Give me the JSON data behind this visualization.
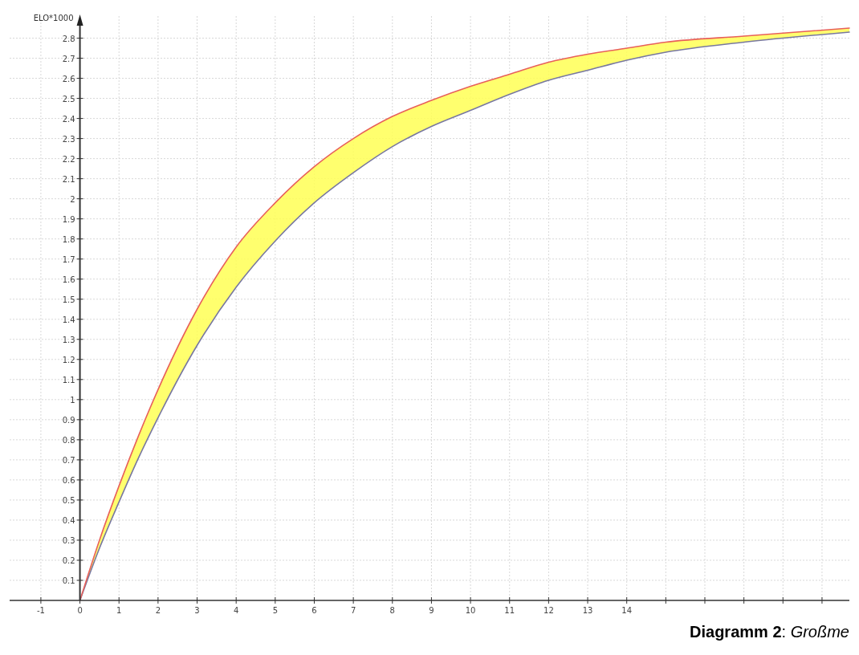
{
  "chart_data": {
    "type": "line",
    "ylabel": "ELO*1000",
    "annotations": [
      "**Diagramm 2**: *Großme*"
    ],
    "xlim": [
      -1.8,
      19.7
    ],
    "ylim": [
      0,
      2.87
    ],
    "xticks": [
      -1,
      0,
      1,
      2,
      3,
      4,
      5,
      6,
      7,
      8,
      9,
      10,
      11,
      12,
      13,
      14,
      {
        "value": 15,
        "label": null
      },
      {
        "value": 16,
        "label": null
      },
      {
        "value": 17,
        "label": null
      },
      {
        "value": 18,
        "label": null
      },
      {
        "value": 19,
        "label": null
      }
    ],
    "yticks": [
      0.1,
      0.2,
      0.3,
      0.4,
      0.5,
      0.6,
      0.7,
      0.8,
      0.9,
      1,
      1.1,
      1.2,
      1.3,
      1.4,
      1.5,
      1.6,
      1.7,
      1.8,
      1.9,
      2,
      2.1,
      2.2,
      2.3,
      2.4,
      2.5,
      2.6,
      2.7,
      2.8
    ],
    "x": [
      0,
      0.5,
      1,
      1.5,
      2,
      3,
      4,
      5,
      6,
      7,
      8,
      9,
      10,
      11,
      12,
      13,
      14,
      15,
      17,
      19.7
    ],
    "grid": true,
    "line_style": "solid",
    "marker": "none",
    "series": [
      {
        "color": "#e8605a",
        "values": [
          0,
          0.3,
          0.57,
          0.82,
          1.05,
          1.45,
          1.76,
          1.98,
          2.16,
          2.3,
          2.41,
          2.49,
          2.56,
          2.62,
          2.68,
          2.72,
          2.75,
          2.78,
          2.81,
          2.85
        ]
      },
      {
        "color": "#7878a0",
        "values": [
          0,
          0.26,
          0.49,
          0.71,
          0.91,
          1.27,
          1.56,
          1.79,
          1.98,
          2.13,
          2.26,
          2.36,
          2.44,
          2.52,
          2.59,
          2.64,
          2.69,
          2.73,
          2.78,
          2.83
        ],
        "lower": [
          0,
          0.26,
          0.49,
          0.71,
          0.91,
          1.27,
          1.56,
          1.79,
          1.98,
          2.13,
          2.26,
          2.36,
          2.44,
          2.52,
          2.59,
          2.64,
          2.69,
          2.73,
          2.78,
          2.83
        ],
        "upper": [
          0,
          0.3,
          0.57,
          0.82,
          1.05,
          1.45,
          1.76,
          1.98,
          2.16,
          2.3,
          2.41,
          2.49,
          2.56,
          2.62,
          2.68,
          2.72,
          2.75,
          2.78,
          2.81,
          2.85
        ]
      }
    ]
  }
}
